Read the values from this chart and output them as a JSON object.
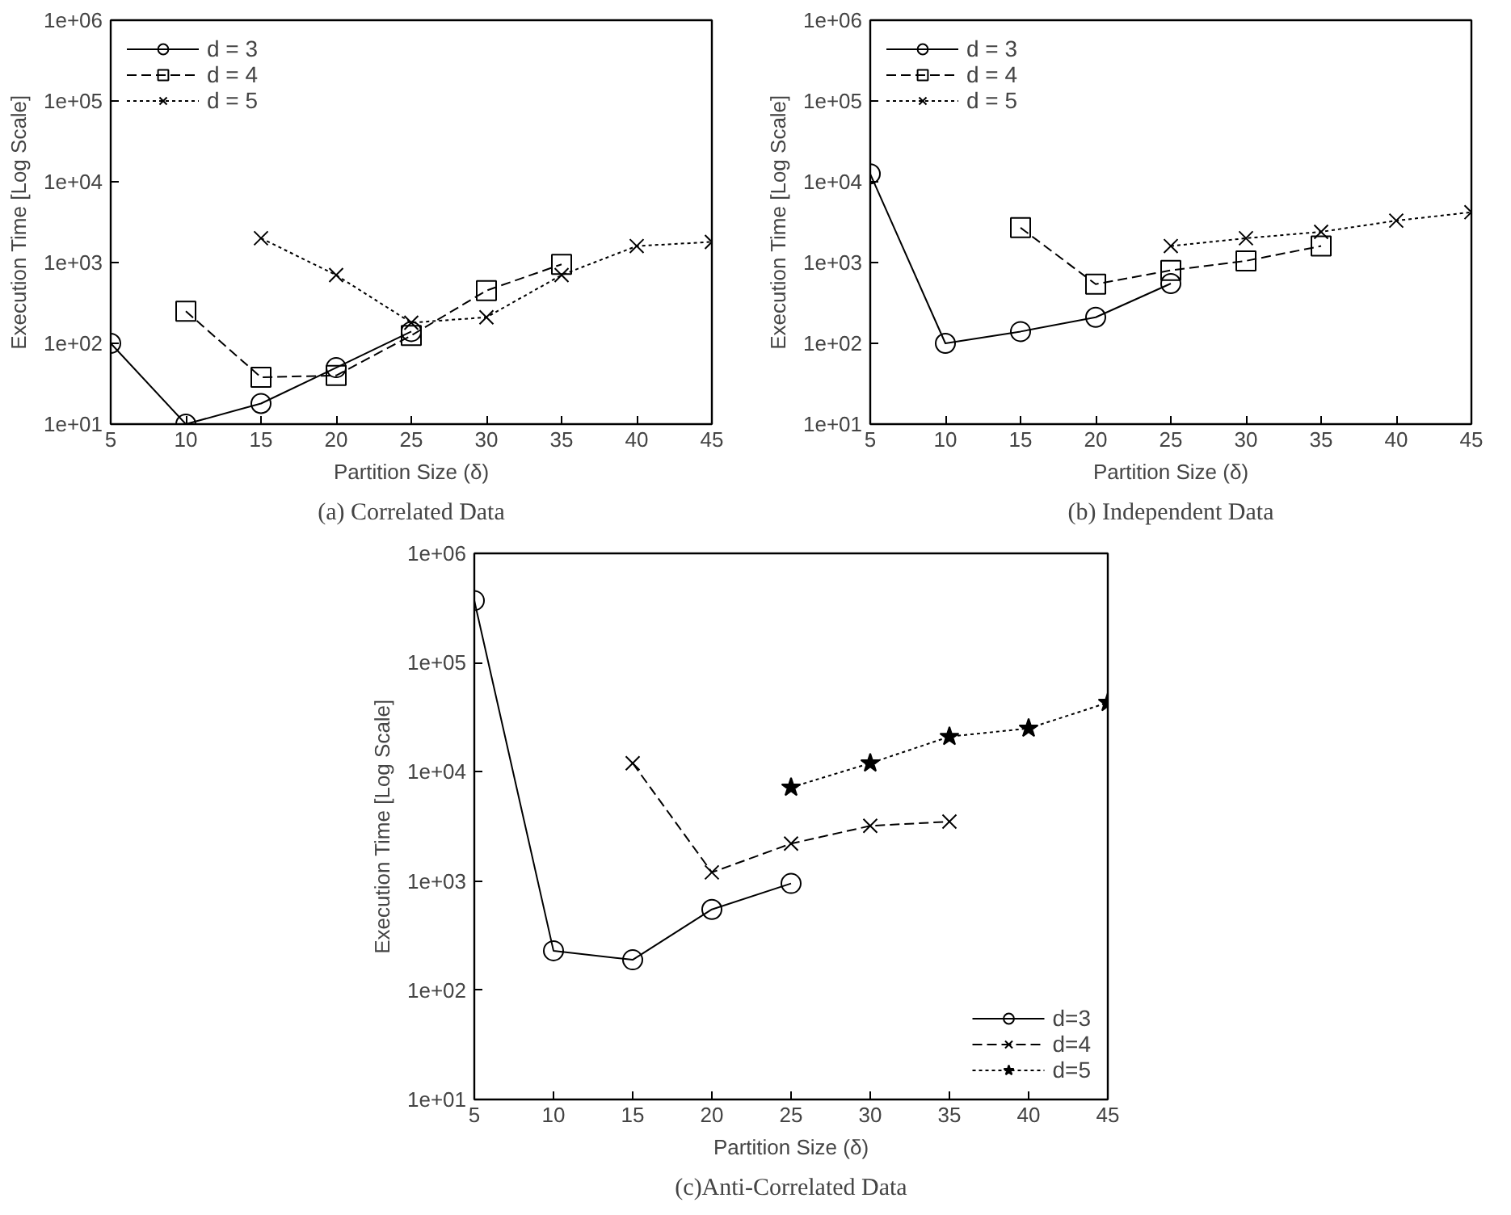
{
  "chart_data": [
    {
      "type": "line",
      "title": "(a) Correlated Data",
      "xlabel": "Partition Size (δ)",
      "ylabel": "Execution Time [Log Scale]",
      "log": true,
      "grid": false,
      "legend": "top left",
      "xlim": [
        5,
        45
      ],
      "xticks": [
        5,
        10,
        15,
        20,
        25,
        30,
        35,
        40,
        45
      ],
      "ylim": [
        10,
        1000000
      ],
      "yticks": [
        {
          "value": 10,
          "label": "1e+01"
        },
        {
          "value": 100,
          "label": "1e+02"
        },
        {
          "value": 1000,
          "label": "1e+03"
        },
        {
          "value": 10000,
          "label": "1e+04"
        },
        {
          "value": 100000,
          "label": "1e+05"
        },
        {
          "value": 1000000,
          "label": "1e+06"
        }
      ],
      "series": [
        {
          "name": "d = 3",
          "color": "#000000",
          "marker": "circle",
          "line_style": "solid",
          "x": [
            5,
            10,
            15,
            20,
            25
          ],
          "values": [
            100,
            10,
            18,
            50,
            140
          ]
        },
        {
          "name": "d = 4",
          "color": "#000000",
          "marker": "square",
          "line_style": "dashed",
          "x": [
            10,
            15,
            20,
            25,
            30,
            35
          ],
          "values": [
            250,
            38,
            40,
            125,
            450,
            950
          ]
        },
        {
          "name": "d = 5",
          "color": "#000000",
          "marker": "cross",
          "line_style": "dotted",
          "x": [
            15,
            20,
            25,
            30,
            35,
            40,
            45
          ],
          "values": [
            2000,
            700,
            180,
            210,
            700,
            1600,
            1800
          ]
        }
      ]
    },
    {
      "type": "line",
      "title": "(b) Independent Data",
      "xlabel": "Partition Size (δ)",
      "ylabel": "Execution Time [Log Scale]",
      "log": true,
      "grid": false,
      "legend": "top left",
      "xlim": [
        5,
        45
      ],
      "xticks": [
        5,
        10,
        15,
        20,
        25,
        30,
        35,
        40,
        45
      ],
      "ylim": [
        10,
        1000000
      ],
      "yticks": [
        {
          "value": 10,
          "label": "1e+01"
        },
        {
          "value": 100,
          "label": "1e+02"
        },
        {
          "value": 1000,
          "label": "1e+03"
        },
        {
          "value": 10000,
          "label": "1e+04"
        },
        {
          "value": 100000,
          "label": "1e+05"
        },
        {
          "value": 1000000,
          "label": "1e+06"
        }
      ],
      "series": [
        {
          "name": "d = 3",
          "color": "#000000",
          "marker": "circle",
          "line_style": "solid",
          "x": [
            5,
            10,
            15,
            20,
            25
          ],
          "values": [
            12500,
            100,
            140,
            210,
            550
          ]
        },
        {
          "name": "d = 4",
          "color": "#000000",
          "marker": "square",
          "line_style": "dashed",
          "x": [
            15,
            20,
            25,
            30,
            35
          ],
          "values": [
            2700,
            540,
            800,
            1050,
            1600
          ]
        },
        {
          "name": "d = 5",
          "color": "#000000",
          "marker": "cross",
          "line_style": "dotted",
          "x": [
            25,
            30,
            35,
            40,
            45
          ],
          "values": [
            1600,
            2000,
            2400,
            3300,
            4200
          ]
        }
      ]
    },
    {
      "type": "line",
      "title": "(c)Anti-Correlated Data",
      "xlabel": "Partition Size (δ)",
      "ylabel": "Execution Time [Log Scale]",
      "log": true,
      "grid": false,
      "legend": "bottom right",
      "xlim": [
        5,
        45
      ],
      "xticks": [
        5,
        10,
        15,
        20,
        25,
        30,
        35,
        40,
        45
      ],
      "ylim": [
        10,
        1000000
      ],
      "yticks": [
        {
          "value": 10,
          "label": "1e+01"
        },
        {
          "value": 100,
          "label": "1e+02"
        },
        {
          "value": 1000,
          "label": "1e+03"
        },
        {
          "value": 10000,
          "label": "1e+04"
        },
        {
          "value": 100000,
          "label": "1e+05"
        },
        {
          "value": 1000000,
          "label": "1e+06"
        }
      ],
      "series": [
        {
          "name": "d=3",
          "color": "#000000",
          "marker": "circle",
          "line_style": "solid",
          "x": [
            5,
            10,
            15,
            20,
            25
          ],
          "values": [
            370000,
            230,
            190,
            550,
            950
          ]
        },
        {
          "name": "d=4",
          "color": "#000000",
          "marker": "cross",
          "line_style": "dashed",
          "x": [
            15,
            20,
            25,
            30,
            35
          ],
          "values": [
            12000,
            1200,
            2200,
            3200,
            3500
          ]
        },
        {
          "name": "d=5",
          "color": "#000000",
          "marker": "star",
          "line_style": "dotted",
          "x": [
            25,
            30,
            35,
            40,
            45
          ],
          "values": [
            7200,
            12000,
            21000,
            25000,
            43000
          ]
        }
      ]
    }
  ]
}
